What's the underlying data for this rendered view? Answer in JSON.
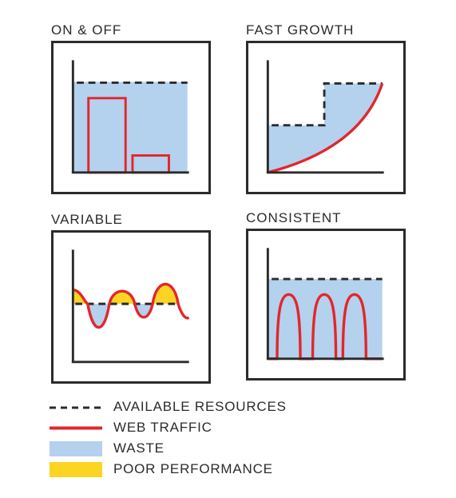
{
  "colors": {
    "frame": "#2b2b2b",
    "traffic": "#e3262b",
    "waste": "#b4d1ee",
    "poor_performance": "#fcd424",
    "resources": "#2b2b2b"
  },
  "panels": [
    {
      "id": "on-off",
      "title": "ON & OFF"
    },
    {
      "id": "fast-growth",
      "title": "FAST GROWTH"
    },
    {
      "id": "variable",
      "title": "VARIABLE"
    },
    {
      "id": "consistent",
      "title": "CONSISTENT"
    }
  ],
  "legend": [
    {
      "key": "available-resources",
      "label": "AVAILABLE RESOURCES",
      "style": "dashed-line"
    },
    {
      "key": "web-traffic",
      "label": "WEB TRAFFIC",
      "style": "red-line"
    },
    {
      "key": "waste",
      "label": "WASTE",
      "style": "blue-fill"
    },
    {
      "key": "poor-performance",
      "label": "POOR PERFORMANCE",
      "style": "yellow-fill"
    }
  ]
}
